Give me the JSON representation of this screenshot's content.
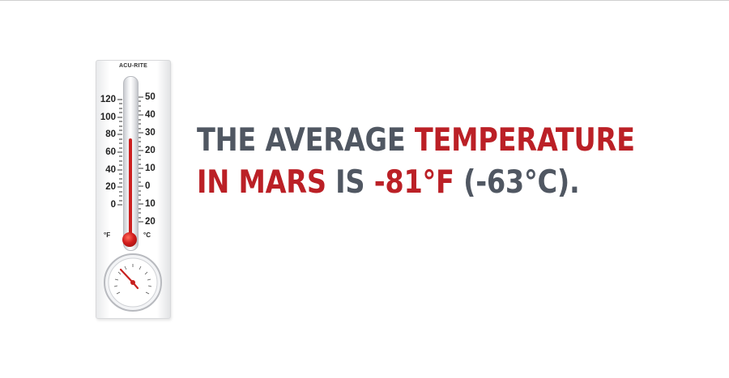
{
  "thermometer": {
    "brand": "ACU-RITE",
    "fahrenheit_ticks": [
      "120",
      "100",
      "80",
      "60",
      "40",
      "20",
      "0"
    ],
    "celsius_ticks": [
      "50",
      "40",
      "30",
      "20",
      "10",
      "0",
      "10",
      "20"
    ],
    "fahrenheit_unit": "°F",
    "celsius_unit": "°C"
  },
  "headline": {
    "line1_part1": "THE AVERAGE",
    "line1_part2": "TEMPERATURE",
    "line2_part1": "IN MARS",
    "line2_part2": "IS",
    "line2_part3": "-81°F",
    "line2_part4": "(-63°C)."
  },
  "colors": {
    "accent": "#bb2026",
    "text": "#505762"
  }
}
